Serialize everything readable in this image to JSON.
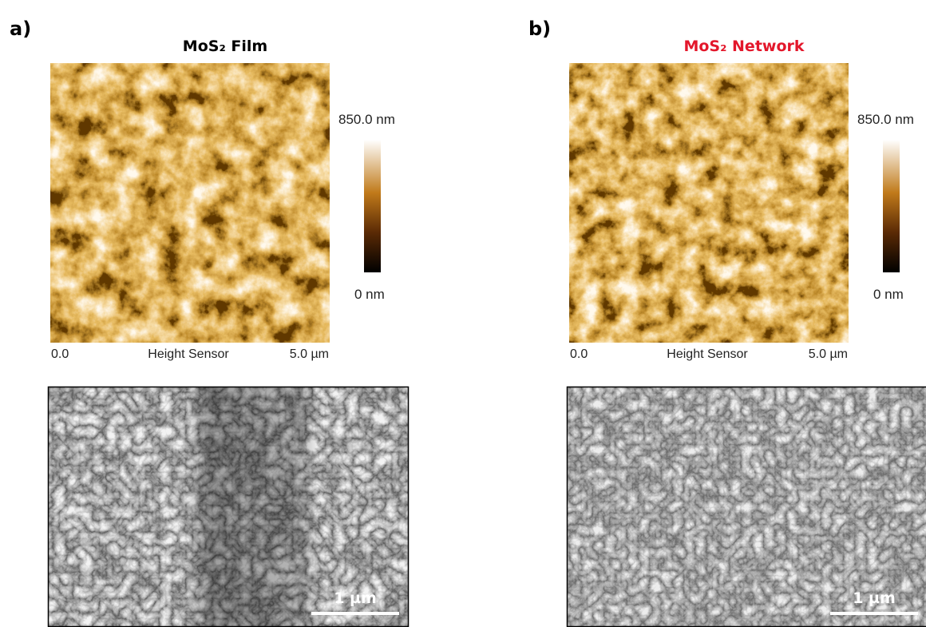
{
  "panels": [
    {
      "label": "a)",
      "title": "MoS₂ Film",
      "title_color": "#000000",
      "colorbar": {
        "max": "850.0 nm",
        "min": "0 nm"
      },
      "axis": {
        "start": "0.0",
        "name": "Height Sensor",
        "end": "5.0 µm"
      },
      "scale_bar": "1 µm"
    },
    {
      "label": "b)",
      "title": "MoS₂ Network",
      "title_color": "#e3172b",
      "colorbar": {
        "max": "850.0 nm",
        "min": "0 nm"
      },
      "axis": {
        "start": "0.0",
        "name": "Height Sensor",
        "end": "5.0 µm"
      },
      "scale_bar": "1 µm"
    }
  ]
}
